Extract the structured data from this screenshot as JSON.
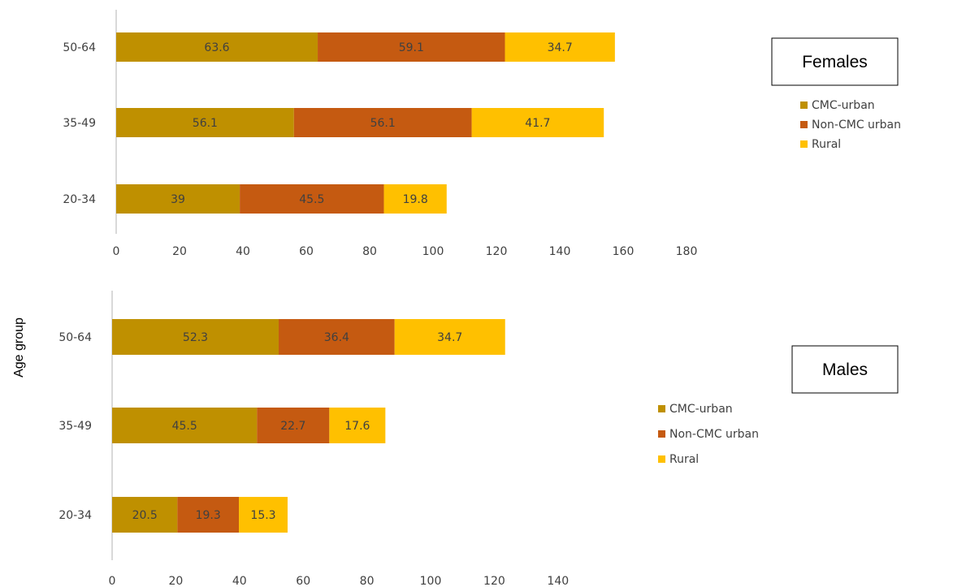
{
  "chart_data": [
    {
      "type": "bar",
      "orientation": "horizontal",
      "stacked": true,
      "title": "Females",
      "categories": [
        "20-34",
        "35-49",
        "50-64"
      ],
      "series": [
        {
          "name": "CMC-urban",
          "values": [
            39,
            56.1,
            63.6
          ],
          "color": "#bf9000"
        },
        {
          "name": "Non-CMC urban",
          "values": [
            45.5,
            56.1,
            59.1
          ],
          "color": "#c55a11"
        },
        {
          "name": "Rural",
          "values": [
            19.8,
            41.7,
            34.7
          ],
          "color": "#ffc000"
        }
      ],
      "data_labels": [
        [
          "39",
          "56.1",
          "63.6"
        ],
        [
          "45.5",
          "56.1",
          "59.1"
        ],
        [
          "19.8",
          "41.7",
          "34.7"
        ]
      ],
      "xticks": [
        "0",
        "20",
        "40",
        "60",
        "80",
        "100",
        "120",
        "140",
        "160",
        "180"
      ],
      "xlim": [
        0,
        180
      ],
      "legend_position": "right",
      "grid": false
    },
    {
      "type": "bar",
      "orientation": "horizontal",
      "stacked": true,
      "title": "Males",
      "categories": [
        "20-34",
        "35-49",
        "50-64"
      ],
      "series": [
        {
          "name": "CMC-urban",
          "values": [
            20.5,
            45.5,
            52.3
          ],
          "color": "#bf9000"
        },
        {
          "name": "Non-CMC urban",
          "values": [
            19.3,
            22.7,
            36.4
          ],
          "color": "#c55a11"
        },
        {
          "name": "Rural",
          "values": [
            15.3,
            17.6,
            34.7
          ],
          "color": "#ffc000"
        }
      ],
      "data_labels": [
        [
          "20.5",
          "45.5",
          "52.3"
        ],
        [
          "19.3",
          "22.7",
          "36.4"
        ],
        [
          "15.3",
          "17.6",
          "34.7"
        ]
      ],
      "xticks": [
        "0",
        "20",
        "40",
        "60",
        "80",
        "100",
        "120",
        "140"
      ],
      "xlim": [
        0,
        140
      ],
      "legend_position": "right",
      "grid": false
    }
  ],
  "ylabel": "Age group"
}
